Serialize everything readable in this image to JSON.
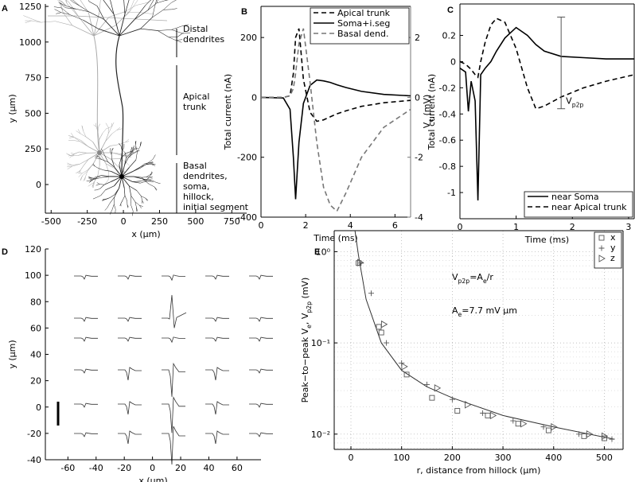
{
  "chart_data": [
    {
      "type": "morphology",
      "panel": "A",
      "xlabel": "x (µm)",
      "ylabel": "y (µm)",
      "xlim": [
        -540,
        853
      ],
      "ylim": [
        -201,
        1267
      ],
      "xticks": [
        -500,
        -250,
        0,
        250,
        500,
        750
      ],
      "yticks": [
        0,
        250,
        500,
        750,
        1000,
        1250
      ],
      "annotations": [
        [
          "Distal",
          "dendrites"
        ],
        [
          "Apical",
          "trunk"
        ],
        [
          "Basal",
          "dendrites,",
          "soma,",
          "hillock,",
          "initial segment"
        ]
      ]
    },
    {
      "type": "line",
      "panel": "B",
      "xlabel": "Time (ms)",
      "ylabel": "Total current (nA)",
      "y2label": "Total current (nA)",
      "xlim": [
        0,
        6.7
      ],
      "ylim": [
        -400,
        304
      ],
      "y2lim": [
        -4,
        3.04
      ],
      "xticks": [
        0,
        2,
        4,
        6
      ],
      "yticks": [
        -400,
        -200,
        0,
        200
      ],
      "y2ticks": [
        -4,
        -2,
        0,
        2
      ],
      "x": [
        0,
        1,
        1.3,
        1.45,
        1.55,
        1.7,
        1.9,
        2.2,
        2.5,
        2.8,
        3.1,
        3.4,
        3.8,
        4.5,
        5.5,
        6.7
      ],
      "series": [
        {
          "name": "Apical trunk",
          "color": "#000000",
          "dash": "dashed",
          "values": [
            0,
            0,
            5,
            80,
            200,
            230,
            60,
            -50,
            -80,
            -75,
            -65,
            -55,
            -45,
            -30,
            -18,
            -10
          ]
        },
        {
          "name": "Soma+i.seg",
          "color": "#000000",
          "dash": "solid",
          "values": [
            0,
            -2,
            -40,
            -200,
            -340,
            -150,
            -20,
            40,
            58,
            55,
            50,
            42,
            33,
            20,
            10,
            5
          ]
        },
        {
          "name": "Basal dend.",
          "color": "#777777",
          "dash": "dashed",
          "axis": "y2",
          "values": [
            0,
            0,
            0.05,
            0.3,
            0.8,
            1.8,
            2.3,
            0.5,
            -1.5,
            -3,
            -3.6,
            -3.8,
            -3.2,
            -2,
            -1,
            -0.4
          ]
        }
      ],
      "legend": "upper right"
    },
    {
      "type": "line",
      "panel": "C",
      "xlabel": "Time (ms)",
      "ylabel": [
        "V",
        "e",
        " (mV)"
      ],
      "xlim": [
        0,
        3.1
      ],
      "ylim": [
        -1.2,
        0.44
      ],
      "xticks": [
        0,
        1,
        2,
        3
      ],
      "yticks": [
        -1,
        -0.8,
        -0.6,
        -0.4,
        -0.2,
        0,
        0.2
      ],
      "x": [
        0,
        0.1,
        0.15,
        0.2,
        0.27,
        0.32,
        0.37,
        0.45,
        0.55,
        0.65,
        0.8,
        1.0,
        1.2,
        1.35,
        1.5,
        1.8,
        2.2,
        2.6,
        3.1
      ],
      "series": [
        {
          "name": "near Soma",
          "color": "#000000",
          "dash": "solid",
          "values": [
            -0.05,
            -0.08,
            -0.38,
            -0.15,
            -0.3,
            -1.06,
            -0.1,
            -0.05,
            0,
            0.08,
            0.18,
            0.26,
            0.2,
            0.13,
            0.08,
            0.04,
            0.03,
            0.02,
            0.02
          ]
        },
        {
          "name": "near Apical trunk",
          "color": "#000000",
          "dash": "dashed",
          "values": [
            0,
            -0.02,
            -0.04,
            -0.06,
            -0.1,
            -0.12,
            0,
            0.15,
            0.28,
            0.33,
            0.3,
            0.1,
            -0.2,
            -0.36,
            -0.34,
            -0.27,
            -0.2,
            -0.15,
            -0.1
          ]
        }
      ],
      "p2p_bar": {
        "x": 1.8,
        "values": [
          -0.36,
          0.34
        ]
      },
      "p2p_label": [
        "V",
        "p2p"
      ],
      "legend": "lower right"
    },
    {
      "type": "trace-grid",
      "panel": "D",
      "xlabel": "x (µm)",
      "ylabel": "y (µm)",
      "xlim": [
        -76,
        77
      ],
      "ylim": [
        -40,
        120
      ],
      "xticks": [
        -60,
        -40,
        -20,
        0,
        20,
        40,
        60
      ],
      "yticks": [
        -40,
        -20,
        0,
        20,
        40,
        60,
        80,
        100,
        120
      ]
    },
    {
      "type": "scatter",
      "panel": "E",
      "xlabel": "r, distance from hillock (µm)",
      "ylabel": [
        "Peak−to−peak V",
        "e",
        ", V",
        "p2p",
        " (mV)"
      ],
      "log_y": true,
      "grid": true,
      "xlim": [
        -33,
        537
      ],
      "ylim": [
        0.0068,
        1.7
      ],
      "xticks": [
        0,
        100,
        200,
        300,
        400,
        500
      ],
      "yticks": [
        {
          "value": 0.01,
          "label": "10⁻²"
        },
        {
          "value": 0.1,
          "label": "10⁻¹"
        },
        {
          "value": 1,
          "label": "10⁰"
        }
      ],
      "series": [
        {
          "name": "x",
          "marker": "square",
          "color": "#555555",
          "x": [
            15,
            55,
            60,
            110,
            160,
            210,
            270,
            330,
            390,
            460,
            500
          ],
          "values": [
            0.75,
            0.15,
            0.13,
            0.045,
            0.025,
            0.018,
            0.016,
            0.013,
            0.011,
            0.0095,
            0.009
          ]
        },
        {
          "name": "y",
          "marker": "plus",
          "color": "#555555",
          "x": [
            20,
            40,
            70,
            100,
            150,
            200,
            260,
            320,
            380,
            450,
            515
          ],
          "values": [
            0.75,
            0.35,
            0.1,
            0.06,
            0.035,
            0.024,
            0.017,
            0.014,
            0.012,
            0.01,
            0.0088
          ]
        },
        {
          "name": "z",
          "marker": "triangle",
          "color": "#555555",
          "x": [
            18,
            65,
            105,
            170,
            230,
            280,
            340,
            400,
            470,
            500
          ],
          "values": [
            0.76,
            0.16,
            0.055,
            0.032,
            0.021,
            0.016,
            0.013,
            0.012,
            0.01,
            0.0095
          ]
        }
      ],
      "fit": {
        "x": [
          8,
          15,
          30,
          60,
          100,
          150,
          200,
          300,
          400,
          520
        ],
        "values": [
          1.7,
          0.9,
          0.3,
          0.1,
          0.05,
          0.033,
          0.025,
          0.016,
          0.012,
          0.0088
        ]
      },
      "equations": [
        [
          "V",
          "p2p",
          "=A",
          "e",
          "/r"
        ],
        [
          "A",
          "e",
          "=7.7 mV µm"
        ]
      ],
      "legend": "upper right"
    }
  ]
}
